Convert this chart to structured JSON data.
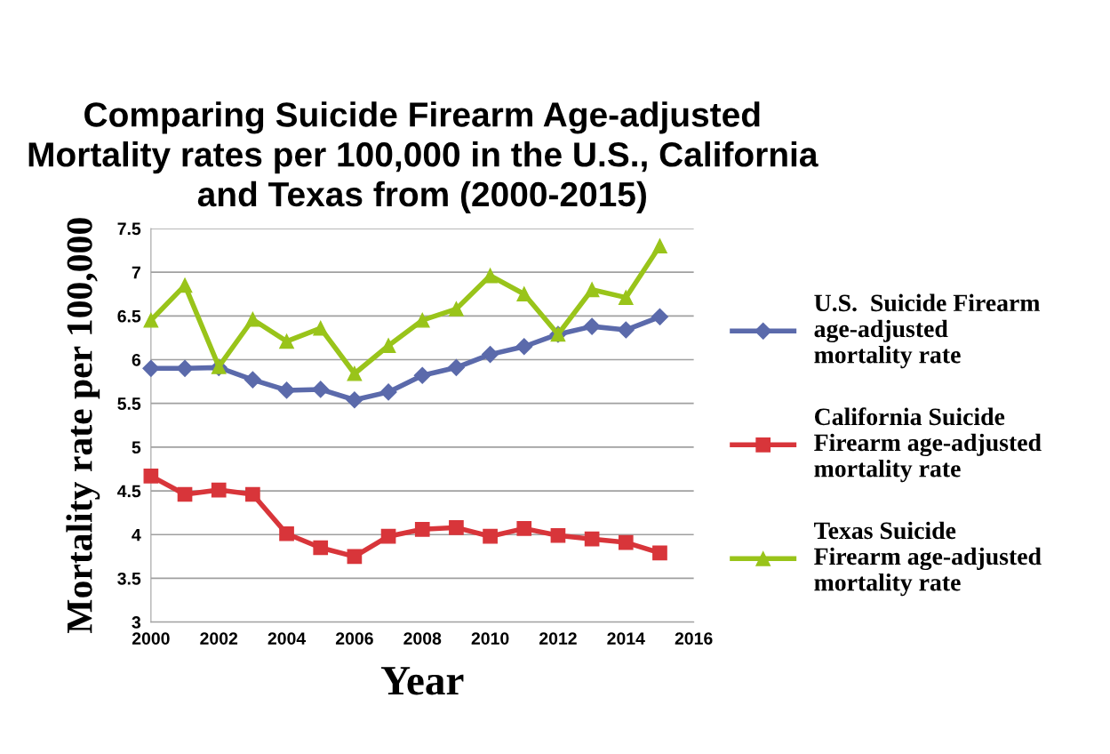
{
  "chart_data": {
    "type": "line",
    "title": "Comparing Suicide Firearm Age-adjusted\nMortality rates per 100,000 in the U.S., California\nand Texas from (2000-2015)",
    "xlabel": "Year",
    "ylabel": "Mortality rate per 100,000",
    "x": [
      2000,
      2001,
      2002,
      2003,
      2004,
      2005,
      2006,
      2007,
      2008,
      2009,
      2010,
      2011,
      2012,
      2013,
      2014,
      2015
    ],
    "series": [
      {
        "name": "U.S.  Suicide Firearm\nage-adjusted\nmortality rate",
        "color": "#5b6aab",
        "marker": "diamond",
        "values": [
          5.9,
          5.9,
          5.91,
          5.77,
          5.65,
          5.66,
          5.54,
          5.63,
          5.82,
          5.91,
          6.06,
          6.15,
          6.29,
          6.38,
          6.34,
          6.49
        ]
      },
      {
        "name": "California Suicide\nFirearm age-adjusted\nmortality rate",
        "color": "#d8353a",
        "marker": "square",
        "values": [
          4.67,
          4.46,
          4.51,
          4.46,
          4.01,
          3.85,
          3.75,
          3.98,
          4.06,
          4.08,
          3.98,
          4.07,
          3.99,
          3.95,
          3.91,
          3.79
        ]
      },
      {
        "name": "Texas Suicide\nFirearm age-adjusted\nmortality rate",
        "color": "#99c41a",
        "marker": "triangle",
        "values": [
          6.45,
          6.85,
          5.92,
          6.46,
          6.21,
          6.36,
          5.84,
          6.16,
          6.45,
          6.58,
          6.96,
          6.75,
          6.29,
          6.8,
          6.71,
          7.3
        ]
      }
    ],
    "xlim": [
      2000,
      2016
    ],
    "xticks": [
      2000,
      2002,
      2004,
      2006,
      2008,
      2010,
      2012,
      2014,
      2016
    ],
    "ylim": [
      3,
      7.5
    ],
    "yticks": [
      3,
      3.5,
      4,
      4.5,
      5,
      5.5,
      6,
      6.5,
      7,
      7.5
    ],
    "grid": "y",
    "legend": "right",
    "line_style": "solid"
  }
}
